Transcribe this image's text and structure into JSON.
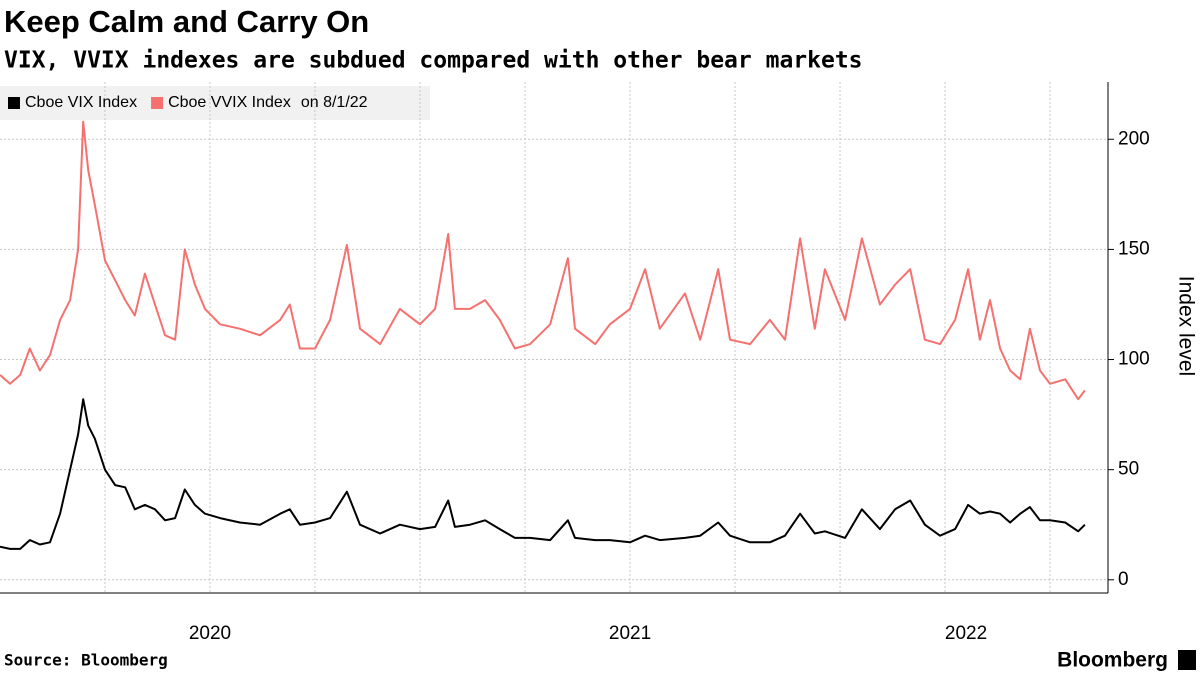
{
  "chart_data": {
    "type": "line",
    "title": "Keep Calm and Carry On",
    "subtitle": "VIX, VVIX indexes are subdued compared with other bear markets",
    "legend_note": "on 8/1/22",
    "y_axis_label": "Index level",
    "source": "Source: Bloomberg",
    "brand": "Bloomberg",
    "x": [
      2020.0,
      2020.024,
      2020.048,
      2020.071,
      2020.095,
      2020.119,
      2020.143,
      2020.167,
      2020.186,
      2020.198,
      2020.21,
      2020.226,
      2020.25,
      2020.274,
      2020.298,
      2020.321,
      2020.345,
      2020.369,
      2020.393,
      2020.417,
      2020.44,
      2020.464,
      2020.488,
      2020.524,
      2020.571,
      2020.619,
      2020.667,
      2020.69,
      2020.714,
      2020.75,
      2020.786,
      2020.826,
      2020.857,
      2020.905,
      2020.952,
      2021.0,
      2021.036,
      2021.067,
      2021.083,
      2021.119,
      2021.155,
      2021.19,
      2021.226,
      2021.262,
      2021.31,
      2021.352,
      2021.369,
      2021.417,
      2021.452,
      2021.5,
      2021.536,
      2021.571,
      2021.631,
      2021.667,
      2021.71,
      2021.738,
      2021.786,
      2021.833,
      2021.869,
      2021.905,
      2021.94,
      2021.964,
      2022.012,
      2022.052,
      2022.095,
      2022.131,
      2022.167,
      2022.202,
      2022.238,
      2022.274,
      2022.305,
      2022.333,
      2022.357,
      2022.381,
      2022.405,
      2022.429,
      2022.452,
      2022.476,
      2022.5,
      2022.536,
      2022.567,
      2022.583
    ],
    "series": [
      {
        "name": "Cboe VIX Index",
        "color": "#000000",
        "values": [
          15,
          14,
          14,
          18,
          16,
          17,
          30,
          50,
          66,
          82,
          70,
          64,
          50,
          43,
          42,
          32,
          34,
          32,
          27,
          28,
          41,
          34,
          30,
          28,
          26,
          25,
          30,
          32,
          25,
          26,
          28,
          40,
          25,
          21,
          25,
          23,
          24,
          36,
          24,
          25,
          27,
          23,
          19,
          19,
          18,
          27,
          19,
          18,
          18,
          17,
          20,
          18,
          19,
          20,
          26,
          20,
          17,
          17,
          20,
          30,
          21,
          22,
          19,
          32,
          23,
          32,
          36,
          25,
          20,
          23,
          34,
          30,
          31,
          30,
          26,
          30,
          33,
          27,
          27,
          26,
          22,
          25
        ]
      },
      {
        "name": "Cboe VVIX Index",
        "color": "#f4716f",
        "values": [
          93,
          89,
          93,
          105,
          95,
          102,
          118,
          127,
          150,
          208,
          186,
          170,
          145,
          136,
          127,
          120,
          139,
          125,
          111,
          109,
          150,
          134,
          123,
          116,
          114,
          111,
          118,
          125,
          105,
          105,
          118,
          152,
          114,
          107,
          123,
          116,
          123,
          157,
          123,
          123,
          127,
          118,
          105,
          107,
          116,
          146,
          114,
          107,
          116,
          123,
          141,
          114,
          130,
          109,
          141,
          109,
          107,
          118,
          109,
          155,
          114,
          141,
          118,
          155,
          125,
          134,
          141,
          109,
          107,
          118,
          141,
          109,
          127,
          105,
          95,
          91,
          114,
          95,
          89,
          91,
          82,
          86
        ]
      }
    ],
    "xlim": [
      2020.0,
      2022.638
    ],
    "xticks": [
      {
        "value": 2020.5,
        "label": "2020"
      },
      {
        "value": 2021.5,
        "label": "2021"
      },
      {
        "value": 2022.3,
        "label": "2022"
      }
    ],
    "xgrid": [
      2020.25,
      2020.5,
      2020.75,
      2021.0,
      2021.25,
      2021.5,
      2021.75,
      2022.0,
      2022.25,
      2022.5
    ],
    "ylim": [
      -6,
      226
    ],
    "yticks": [
      0,
      50,
      100,
      150,
      200
    ],
    "grid": true,
    "legend": "top-left"
  }
}
